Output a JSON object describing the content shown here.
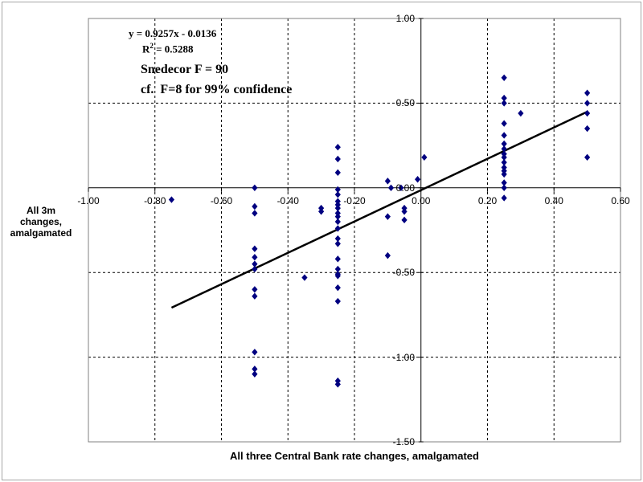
{
  "annotations": {
    "equation": "y = 0.9257x - 0.0136",
    "r_squared_base": "R",
    "r_squared_sup": "2",
    "r_squared_rest": " = 0.5288",
    "f_stat": "Snedecor F = 90",
    "f_note": "cf.  F=8 for 99% confidence"
  },
  "chart_data": {
    "type": "scatter",
    "title": "",
    "xlabel": "All three Central Bank rate changes, amalgamated",
    "ylabel": "All 3m changes, amalgamated",
    "xlim": [
      -1.0,
      0.6
    ],
    "ylim": [
      -1.5,
      1.0
    ],
    "x_ticks": [
      -1.0,
      -0.8,
      -0.6,
      -0.4,
      -0.2,
      0.0,
      0.2,
      0.4,
      0.6
    ],
    "x_tick_labels": [
      "-1.00",
      "-0.80",
      "-0.60",
      "-0.40",
      "-0.20",
      "0.00",
      "0.20",
      "0.40",
      "0.60"
    ],
    "y_ticks": [
      1.0,
      0.5,
      0.0,
      -0.5,
      -1.0,
      -1.5
    ],
    "y_tick_labels": [
      "1.00",
      "0.50",
      "0.00",
      "-0.50",
      "-1.00",
      "-1.50"
    ],
    "x_gridlines": [
      -0.8,
      -0.6,
      -0.4,
      -0.2,
      0.2,
      0.4
    ],
    "y_gridlines": [
      0.5,
      -0.5,
      -1.0
    ],
    "grid": "dashed",
    "legend": "none",
    "marker_color": "#000080",
    "marker_shape": "diamond",
    "trendline": {
      "slope": 0.9257,
      "intercept": -0.0136,
      "x_start": -0.75,
      "x_end": 0.5,
      "equation": "y = 0.9257x - 0.0136",
      "r_squared": 0.5288,
      "color": "#000000"
    },
    "points": [
      [
        -0.75,
        -0.07
      ],
      [
        -0.5,
        0.0
      ],
      [
        -0.5,
        -0.11
      ],
      [
        -0.5,
        -0.15
      ],
      [
        -0.5,
        -0.36
      ],
      [
        -0.5,
        -0.41
      ],
      [
        -0.5,
        -0.45
      ],
      [
        -0.5,
        -0.48
      ],
      [
        -0.5,
        -0.6
      ],
      [
        -0.5,
        -0.64
      ],
      [
        -0.5,
        -0.97
      ],
      [
        -0.5,
        -1.07
      ],
      [
        -0.5,
        -1.1
      ],
      [
        -0.35,
        -0.53
      ],
      [
        -0.3,
        -0.12
      ],
      [
        -0.3,
        -0.14
      ],
      [
        -0.25,
        0.24
      ],
      [
        -0.25,
        0.17
      ],
      [
        -0.25,
        0.09
      ],
      [
        -0.25,
        -0.01
      ],
      [
        -0.25,
        -0.04
      ],
      [
        -0.25,
        -0.08
      ],
      [
        -0.25,
        -0.1
      ],
      [
        -0.25,
        -0.12
      ],
      [
        -0.25,
        -0.15
      ],
      [
        -0.25,
        -0.17
      ],
      [
        -0.25,
        -0.2
      ],
      [
        -0.25,
        -0.24
      ],
      [
        -0.25,
        -0.3
      ],
      [
        -0.25,
        -0.33
      ],
      [
        -0.25,
        -0.42
      ],
      [
        -0.25,
        -0.48
      ],
      [
        -0.25,
        -0.51
      ],
      [
        -0.25,
        -0.52
      ],
      [
        -0.25,
        -0.59
      ],
      [
        -0.25,
        -0.67
      ],
      [
        -0.25,
        -1.14
      ],
      [
        -0.25,
        -1.16
      ],
      [
        -0.1,
        0.04
      ],
      [
        -0.1,
        -0.17
      ],
      [
        -0.1,
        -0.4
      ],
      [
        -0.09,
        0.0
      ],
      [
        -0.06,
        0.0
      ],
      [
        -0.05,
        -0.12
      ],
      [
        -0.05,
        -0.14
      ],
      [
        -0.05,
        -0.19
      ],
      [
        -0.01,
        0.05
      ],
      [
        0.01,
        0.18
      ],
      [
        0.25,
        0.65
      ],
      [
        0.25,
        0.53
      ],
      [
        0.25,
        0.5
      ],
      [
        0.25,
        0.38
      ],
      [
        0.25,
        0.31
      ],
      [
        0.25,
        0.26
      ],
      [
        0.25,
        0.23
      ],
      [
        0.25,
        0.2
      ],
      [
        0.25,
        0.18
      ],
      [
        0.25,
        0.15
      ],
      [
        0.25,
        0.12
      ],
      [
        0.25,
        0.1
      ],
      [
        0.25,
        0.08
      ],
      [
        0.25,
        0.03
      ],
      [
        0.25,
        0.0
      ],
      [
        0.25,
        -0.06
      ],
      [
        0.3,
        0.44
      ],
      [
        0.5,
        0.56
      ],
      [
        0.5,
        0.5
      ],
      [
        0.5,
        0.44
      ],
      [
        0.5,
        0.35
      ],
      [
        0.5,
        0.18
      ]
    ]
  }
}
